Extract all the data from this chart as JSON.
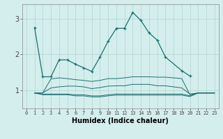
{
  "title": "",
  "xlabel": "Humidex (Indice chaleur)",
  "background_color": "#d4eeed",
  "grid_color": "#b0d4d0",
  "line_color": "#1a7070",
  "x_values": [
    0,
    1,
    2,
    3,
    4,
    5,
    6,
    7,
    8,
    9,
    10,
    11,
    12,
    13,
    14,
    15,
    16,
    17,
    18,
    19,
    20,
    21,
    22,
    23
  ],
  "main_line_x": [
    1,
    2,
    3,
    4,
    5,
    6,
    7,
    8,
    9,
    10,
    11,
    12,
    13,
    14,
    15,
    16,
    17,
    19,
    20
  ],
  "main_line_y": [
    2.75,
    1.38,
    1.38,
    1.85,
    1.85,
    1.73,
    1.63,
    1.53,
    1.93,
    2.37,
    2.73,
    2.73,
    3.17,
    2.95,
    2.6,
    2.4,
    1.93,
    1.55,
    1.4
  ],
  "flat_lines": [
    {
      "x": [
        1,
        2,
        3,
        4,
        5,
        6,
        7,
        8,
        9,
        10,
        11,
        12,
        13,
        14,
        15,
        16,
        17,
        18,
        19,
        20,
        21,
        22,
        23
      ],
      "y": [
        0.93,
        0.93,
        1.32,
        1.35,
        1.33,
        1.3,
        1.28,
        1.25,
        1.28,
        1.33,
        1.33,
        1.35,
        1.38,
        1.38,
        1.38,
        1.37,
        1.37,
        1.35,
        1.33,
        0.88,
        0.93,
        0.93,
        0.93
      ]
    },
    {
      "x": [
        1,
        2,
        3,
        4,
        5,
        6,
        7,
        8,
        9,
        10,
        11,
        12,
        13,
        14,
        15,
        16,
        17,
        18,
        19,
        20,
        21,
        22,
        23
      ],
      "y": [
        0.93,
        0.93,
        1.07,
        1.1,
        1.12,
        1.12,
        1.1,
        1.05,
        1.08,
        1.12,
        1.13,
        1.13,
        1.17,
        1.17,
        1.17,
        1.13,
        1.13,
        1.1,
        1.07,
        0.9,
        0.93,
        0.93,
        0.93
      ]
    },
    {
      "x": [
        1,
        2,
        3,
        4,
        5,
        6,
        7,
        8,
        9,
        10,
        11,
        12,
        13,
        14,
        15,
        16,
        17,
        18,
        19,
        20,
        21,
        22,
        23
      ],
      "y": [
        0.93,
        0.9,
        0.9,
        0.9,
        0.9,
        0.88,
        0.88,
        0.85,
        0.85,
        0.88,
        0.9,
        0.9,
        0.9,
        0.9,
        0.9,
        0.9,
        0.9,
        0.9,
        0.9,
        0.85,
        0.93,
        0.93,
        0.93
      ]
    },
    {
      "x": [
        1,
        2,
        3,
        4,
        5,
        6,
        7,
        8,
        9,
        10,
        11,
        12,
        13,
        14,
        15,
        16,
        17,
        18,
        19,
        20,
        21,
        22,
        23
      ],
      "y": [
        0.93,
        0.88,
        0.88,
        0.88,
        0.88,
        0.85,
        0.85,
        0.82,
        0.82,
        0.85,
        0.87,
        0.87,
        0.87,
        0.87,
        0.87,
        0.87,
        0.87,
        0.87,
        0.87,
        0.83,
        0.93,
        0.93,
        0.93
      ]
    }
  ],
  "ylim": [
    0.5,
    3.4
  ],
  "yticks": [
    1,
    2,
    3
  ],
  "xlim": [
    -0.5,
    23.5
  ],
  "xticks": [
    0,
    1,
    2,
    3,
    4,
    5,
    6,
    7,
    8,
    9,
    10,
    11,
    12,
    13,
    14,
    15,
    16,
    17,
    18,
    19,
    20,
    21,
    22,
    23
  ]
}
